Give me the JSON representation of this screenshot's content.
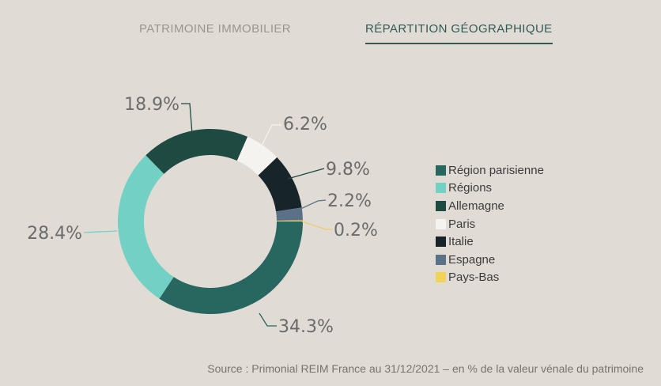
{
  "tabs": [
    {
      "label": "PATRIMOINE IMMOBILIER",
      "active": false
    },
    {
      "label": "RÉPARTITION GÉOGRAPHIQUE",
      "active": true
    }
  ],
  "chart_data": {
    "type": "pie",
    "style": "donut",
    "categories": [
      "Région parisienne",
      "Régions",
      "Allemagne",
      "Paris",
      "Italie",
      "Espagne",
      "Pays-Bas"
    ],
    "values": [
      34.3,
      28.4,
      18.9,
      6.2,
      9.8,
      2.2,
      0.2
    ],
    "data_labels": [
      "34.3%",
      "28.4%",
      "18.9%",
      "6.2%",
      "9.8%",
      "2.2%",
      "0.2%"
    ],
    "colors": [
      "#27675f",
      "#72d1c4",
      "#1f4a42",
      "#f5f3ef",
      "#17252a",
      "#5b7187",
      "#f2d35a"
    ],
    "legend_position": "right"
  },
  "source": "Source : Primonial REIM France au 31/12/2021 – en % de la valeur vénale du patrimoine"
}
